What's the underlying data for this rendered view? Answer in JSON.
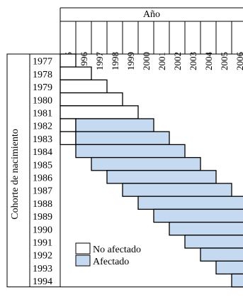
{
  "title": "Año",
  "row_axis_label": "Cohorte de nacimiento",
  "colors": {
    "affected": "#c5d9f1",
    "unaffected": "#ffffff",
    "line": "#000000"
  },
  "legend": {
    "unaffected": "No afectado",
    "affected": "Afectado"
  },
  "years": [
    "1995",
    "1996",
    "1997",
    "1998",
    "1999",
    "2000",
    "2001",
    "2002",
    "2003",
    "2004",
    "2005",
    "2006"
  ],
  "cohorts": [
    {
      "cohort": "1977",
      "unaffected": [
        1995,
        1995
      ],
      "affected": null
    },
    {
      "cohort": "1978",
      "unaffected": [
        1995,
        1996
      ],
      "affected": null
    },
    {
      "cohort": "1979",
      "unaffected": [
        1995,
        1997
      ],
      "affected": null
    },
    {
      "cohort": "1980",
      "unaffected": [
        1995,
        1998
      ],
      "affected": null
    },
    {
      "cohort": "1981",
      "unaffected": [
        1995,
        1999
      ],
      "affected": null
    },
    {
      "cohort": "1982",
      "unaffected": [
        1995,
        1995
      ],
      "affected": [
        1996,
        2000
      ]
    },
    {
      "cohort": "1983",
      "unaffected": [
        1995,
        1995
      ],
      "affected": [
        1996,
        2001
      ]
    },
    {
      "cohort": "1984",
      "unaffected": null,
      "affected": [
        1996,
        2002
      ]
    },
    {
      "cohort": "1985",
      "unaffected": null,
      "affected": [
        1997,
        2003
      ]
    },
    {
      "cohort": "1986",
      "unaffected": null,
      "affected": [
        1998,
        2004
      ]
    },
    {
      "cohort": "1987",
      "unaffected": null,
      "affected": [
        1999,
        2005
      ]
    },
    {
      "cohort": "1988",
      "unaffected": null,
      "affected": [
        2000,
        2006
      ]
    },
    {
      "cohort": "1989",
      "unaffected": null,
      "affected": [
        2001,
        2006
      ]
    },
    {
      "cohort": "1990",
      "unaffected": null,
      "affected": [
        2002,
        2006
      ]
    },
    {
      "cohort": "1991",
      "unaffected": null,
      "affected": [
        2003,
        2006
      ]
    },
    {
      "cohort": "1992",
      "unaffected": null,
      "affected": [
        2004,
        2006
      ]
    },
    {
      "cohort": "1993",
      "unaffected": null,
      "affected": [
        2005,
        2006
      ]
    },
    {
      "cohort": "1994",
      "unaffected": null,
      "affected": [
        2006,
        2006
      ]
    }
  ]
}
